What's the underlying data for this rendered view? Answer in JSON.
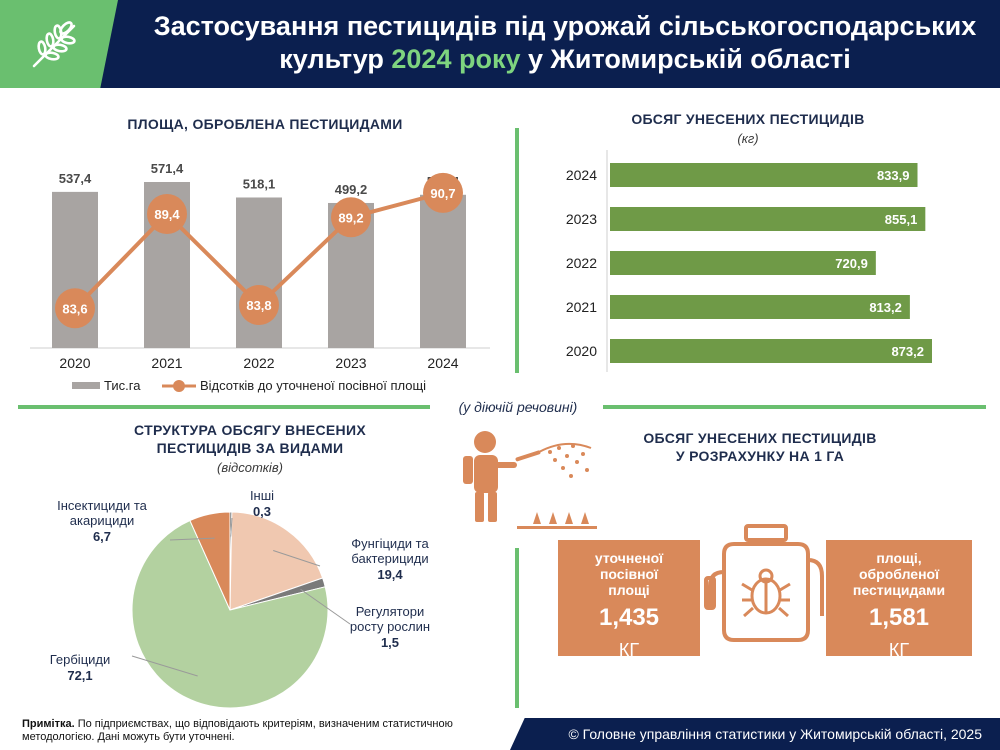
{
  "header": {
    "title_part1": "Застосування пестицидів під урожай сільськогосподарських",
    "title_part2": "культур ",
    "title_accent": "2024 року",
    "title_part3": " у Житомирській області"
  },
  "colors": {
    "navy": "#0b1f4f",
    "green": "#6abf6f",
    "bar_gray": "#a8a4a2",
    "orange": "#d9895a",
    "bar_green": "#6f9a47",
    "pie_herbicides": "#b3d1a0",
    "pie_fungicides": "#f0c8b0",
    "pie_insecticides": "#d9895a",
    "pie_regulators": "#7a7a7a",
    "pie_other": "#3a3a3a"
  },
  "chart_data": [
    {
      "id": "area-treated",
      "type": "bar+line",
      "title": "ПЛОЩА, ОБРОБЛЕНА ПЕСТИЦИДАМИ",
      "categories": [
        "2020",
        "2021",
        "2022",
        "2023",
        "2024"
      ],
      "series": [
        {
          "name": "Тис.га",
          "type": "bar",
          "values": [
            "537,4",
            "571,4",
            "518,1",
            "499,2",
            "527,4"
          ],
          "numeric": [
            537.4,
            571.4,
            518.1,
            499.2,
            527.4
          ]
        },
        {
          "name": "Відсотків до уточненої посівної площі",
          "type": "line",
          "values": [
            "83,6",
            "89,4",
            "83,8",
            "89,2",
            "90,7"
          ],
          "numeric": [
            83.6,
            89.4,
            83.8,
            89.2,
            90.7
          ]
        }
      ],
      "legend": "bottom"
    },
    {
      "id": "volume-applied",
      "type": "bar",
      "orientation": "horizontal",
      "title": "ОБСЯГ УНЕСЕНИХ ПЕСТИЦИДІВ",
      "subtitle": "(кг)",
      "categories": [
        "2024",
        "2023",
        "2022",
        "2021",
        "2020"
      ],
      "values": [
        "833,9",
        "855,1",
        "720,9",
        "813,2",
        "873,2"
      ],
      "numeric": [
        833.9,
        855.1,
        720.9,
        813.2,
        873.2
      ]
    },
    {
      "id": "structure",
      "type": "pie",
      "title_line1": "СТРУКТУРА ОБСЯГУ ВНЕСЕНИХ",
      "title_line2": "ПЕСТИЦИДІВ ЗА ВИДАМИ",
      "subtitle": "(відсотків)",
      "slices": [
        {
          "label_line1": "Інші",
          "label_line2": "",
          "value_label": "0,3",
          "value": 0.3
        },
        {
          "label_line1": "Фунгіциди та",
          "label_line2": "бактерициди",
          "value_label": "19,4",
          "value": 19.4
        },
        {
          "label_line1": "Регулятори",
          "label_line2": "росту рослин",
          "value_label": "1,5",
          "value": 1.5
        },
        {
          "label_line1": "Гербіциди",
          "label_line2": "",
          "value_label": "72,1",
          "value": 72.1
        },
        {
          "label_line1": "Інсектициди та",
          "label_line2": "акарициди",
          "value_label": "6,7",
          "value": 6.7
        }
      ]
    }
  ],
  "active_substance_note": "(у діючій речовині)",
  "per_ha": {
    "title_line1": "ОБСЯГ УНЕСЕНИХ ПЕСТИЦИДІВ",
    "title_line2": "У РОЗРАХУНКУ НА 1 ГА",
    "left": {
      "line1": "уточненої",
      "line2": "посівної",
      "line3": "площі",
      "value": "1,435",
      "unit": "КГ"
    },
    "right": {
      "line1": "площі,",
      "line2": "обробленої",
      "line3": "пестицидами",
      "value": "1,581",
      "unit": "КГ"
    }
  },
  "footer": {
    "note_bold": "Примітка.",
    "note_text": " По підприємствах, що відповідають критеріям, визначеним статистичною методологією. Дані можуть бути уточнені.",
    "copyright": "© Головне управління статистики у Житомирській області, 2025"
  },
  "icons": [
    "wheat-icon",
    "sprayer-person-icon",
    "sprayer-tank-icon",
    "bug-icon"
  ]
}
